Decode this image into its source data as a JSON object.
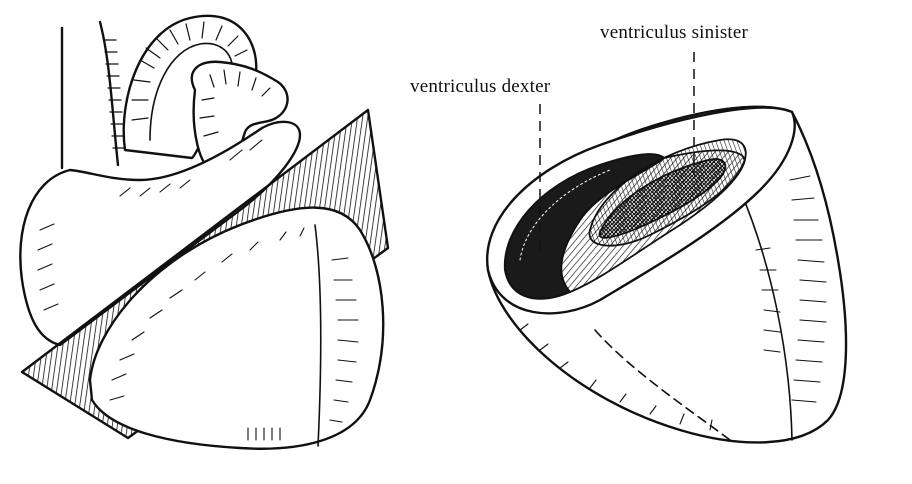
{
  "labels": {
    "ventriculus_sinister": "ventriculus sinister",
    "ventriculus_dexter": "ventriculus dexter"
  },
  "colors": {
    "ink": "#111111",
    "paper": "#ffffff",
    "shade": "#1a1a1a"
  }
}
